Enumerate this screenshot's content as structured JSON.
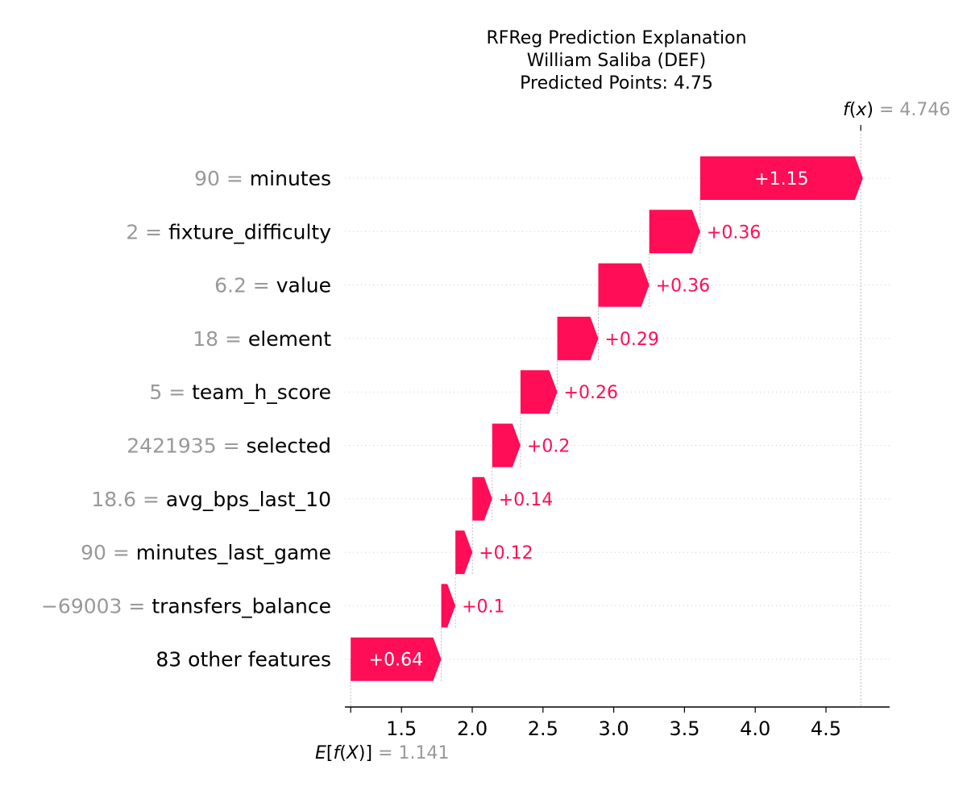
{
  "chart_data": {
    "type": "bar",
    "title_lines": [
      "RFReg Prediction Explanation",
      "William Saliba (DEF)",
      "Predicted Points: 4.75"
    ],
    "base_value": 1.141,
    "base_label": "1.141",
    "fx_value": 4.746,
    "fx_label": "4.746",
    "xlim": [
      1.1,
      4.95
    ],
    "xticks": [
      1.5,
      2.0,
      2.5,
      3.0,
      3.5,
      4.0,
      4.5
    ],
    "xtick_labels": [
      "1.5",
      "2.0",
      "2.5",
      "3.0",
      "3.5",
      "4.0",
      "4.5"
    ],
    "positive_color": "#ff0d57",
    "features": [
      {
        "value_text": "90",
        "name": "minutes",
        "contribution": 1.15,
        "label": "+1.15"
      },
      {
        "value_text": "2",
        "name": "fixture_difficulty",
        "contribution": 0.36,
        "label": "+0.36"
      },
      {
        "value_text": "6.2",
        "name": "value",
        "contribution": 0.36,
        "label": "+0.36"
      },
      {
        "value_text": "18",
        "name": "element",
        "contribution": 0.29,
        "label": "+0.29"
      },
      {
        "value_text": "5",
        "name": "team_h_score",
        "contribution": 0.26,
        "label": "+0.26"
      },
      {
        "value_text": "2421935",
        "name": "selected",
        "contribution": 0.2,
        "label": "+0.2"
      },
      {
        "value_text": "18.6",
        "name": "avg_bps_last_10",
        "contribution": 0.14,
        "label": "+0.14"
      },
      {
        "value_text": "90",
        "name": "minutes_last_game",
        "contribution": 0.12,
        "label": "+0.12"
      },
      {
        "value_text": "−69003",
        "name": "transfers_balance",
        "contribution": 0.1,
        "label": "+0.1"
      },
      {
        "value_text": "",
        "name": "83 other features",
        "contribution": 0.64,
        "label": "+0.64"
      }
    ]
  }
}
